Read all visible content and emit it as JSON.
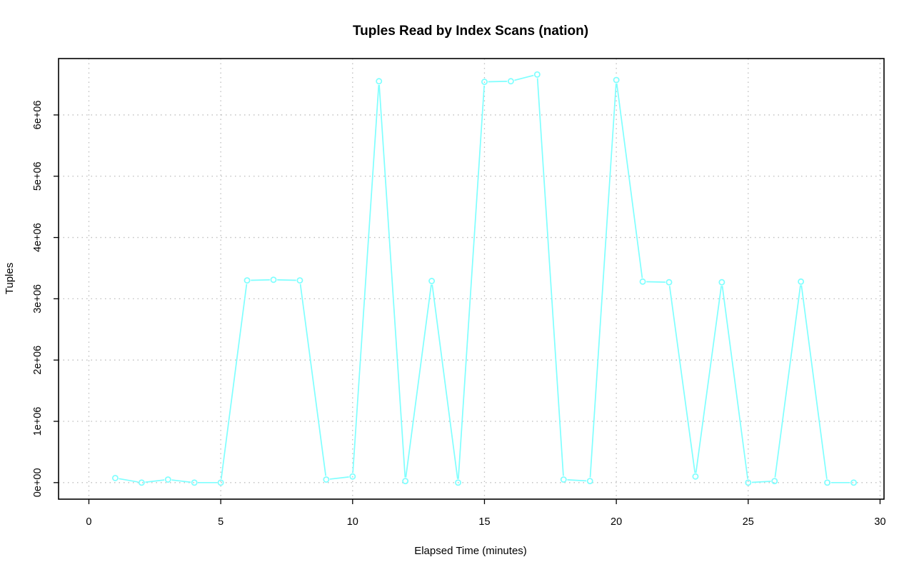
{
  "chart_data": {
    "type": "line",
    "title": "Tuples Read by Index Scans (nation)",
    "xlabel": "Elapsed Time (minutes)",
    "ylabel": "Tuples",
    "xlim": [
      -1.15,
      30.15
    ],
    "ylim": [
      -270000,
      6920000
    ],
    "x_ticks": [
      0,
      5,
      10,
      15,
      20,
      25,
      30
    ],
    "x_tick_labels": [
      "0",
      "5",
      "10",
      "15",
      "20",
      "25",
      "30"
    ],
    "y_ticks": [
      0,
      1000000,
      2000000,
      3000000,
      4000000,
      5000000,
      6000000
    ],
    "y_tick_labels": [
      "0e+00",
      "1e+06",
      "2e+06",
      "3e+06",
      "4e+06",
      "5e+06",
      "6e+06"
    ],
    "grid": true,
    "legend": "none",
    "series": [
      {
        "color": "#7fffff",
        "marker": "open-circle",
        "x": [
          1,
          2,
          3,
          4,
          5,
          6,
          7,
          8,
          9,
          10,
          11,
          12,
          13,
          14,
          15,
          16,
          17,
          18,
          19,
          20,
          21,
          22,
          23,
          24,
          25,
          26,
          27,
          28,
          29
        ],
        "y": [
          75000,
          0,
          50000,
          0,
          0,
          3300000,
          3310000,
          3300000,
          50000,
          100000,
          6550000,
          25000,
          3290000,
          0,
          6540000,
          6550000,
          6660000,
          50000,
          25000,
          6570000,
          3280000,
          3270000,
          100000,
          3270000,
          0,
          25000,
          3280000,
          0,
          0
        ]
      }
    ]
  }
}
